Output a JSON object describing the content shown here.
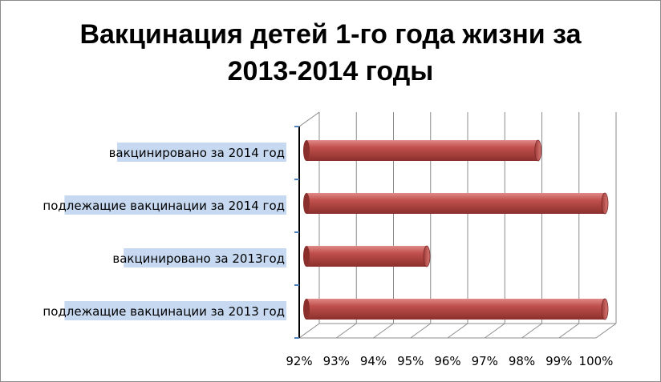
{
  "chart_data": {
    "type": "bar",
    "orientation": "horizontal",
    "title": "Вакцинация детей 1-го года жизни за 2013-2014 годы",
    "title_lines": [
      "Вакцинация детей 1-го года жизни за",
      "2013-2014 годы"
    ],
    "categories": [
      "вакцинировано за 2014 год",
      "подлежащие вакцинации за 2014 год",
      "вакцинировано за 2013год",
      "подлежащие вакцинации за 2013 год"
    ],
    "values": [
      98.2,
      100,
      95.2,
      100
    ],
    "xlim": [
      92,
      100
    ],
    "x_ticks": [
      "92%",
      "93%",
      "94%",
      "95%",
      "96%",
      "97%",
      "98%",
      "99%",
      "100%"
    ],
    "grid": true,
    "legend": "none",
    "bar_color": "#c0504d",
    "label_highlight_color": "#c6d9f1"
  }
}
